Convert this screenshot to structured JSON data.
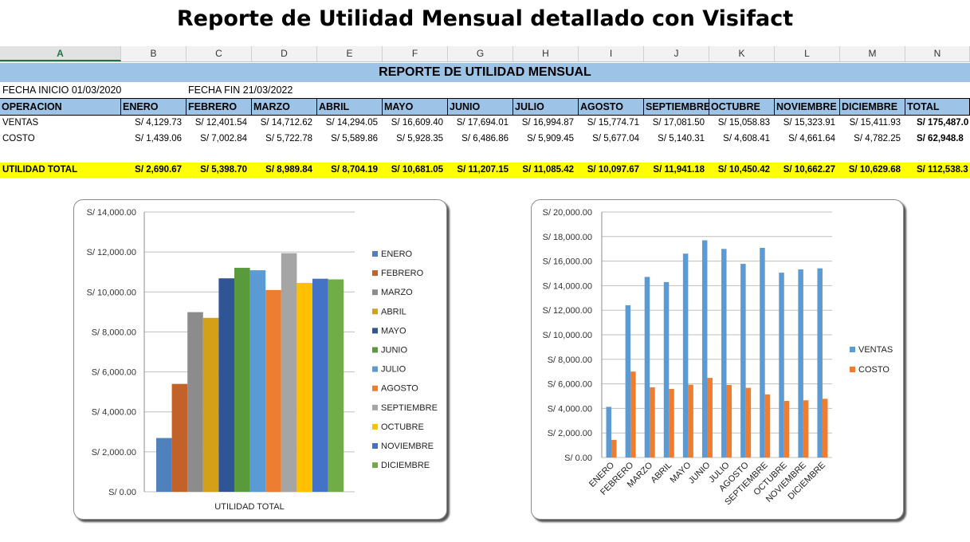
{
  "title": "Reporte de Utilidad Mensual detallado con Visifact",
  "columns": [
    "A",
    "B",
    "C",
    "D",
    "E",
    "F",
    "G",
    "H",
    "I",
    "J",
    "K",
    "L",
    "M",
    "N"
  ],
  "banner": "REPORTE DE UTILIDAD MENSUAL",
  "fecha_inicio": "FECHA INICIO  01/03/2020",
  "fecha_fin": "FECHA FIN  21/03/2022",
  "headers": [
    "OPERACION",
    "ENERO",
    "FEBRERO",
    "MARZO",
    "ABRIL",
    "MAYO",
    "JUNIO",
    "JULIO",
    "AGOSTO",
    "SEPTIEMBRE",
    "OCTUBRE",
    "NOVIEMBRE",
    "DICIEMBRE",
    "TOTAL"
  ],
  "rows": {
    "ventas": [
      "VENTAS",
      "S/ 4,129.73",
      "S/ 12,401.54",
      "S/ 14,712.62",
      "S/ 14,294.05",
      "S/ 16,609.40",
      "S/ 17,694.01",
      "S/ 16,994.87",
      "S/ 15,774.71",
      "S/ 17,081.50",
      "S/ 15,058.83",
      "S/ 15,323.91",
      "S/ 15,411.93",
      "S/ 175,487.0"
    ],
    "costo": [
      "COSTO",
      "S/ 1,439.06",
      "S/ 7,002.84",
      "S/ 5,722.78",
      "S/ 5,589.86",
      "S/ 5,928.35",
      "S/ 6,486.86",
      "S/ 5,909.45",
      "S/ 5,677.04",
      "S/ 5,140.31",
      "S/ 4,608.41",
      "S/ 4,661.64",
      "S/ 4,782.25",
      "S/ 62,948.8"
    ],
    "utilidad": [
      "UTILIDAD TOTAL",
      "S/ 2,690.67",
      "S/ 5,398.70",
      "S/ 8,989.84",
      "S/ 8,704.19",
      "S/ 10,681.05",
      "S/ 11,207.15",
      "S/ 11,085.42",
      "S/ 10,097.67",
      "S/ 11,941.18",
      "S/ 10,450.42",
      "S/ 10,662.27",
      "S/ 10,629.68",
      "S/ 112,538.3"
    ]
  },
  "chart_data": [
    {
      "type": "bar",
      "categories": [
        "UTILIDAD TOTAL"
      ],
      "xlabel": "UTILIDAD TOTAL",
      "ylim": [
        0,
        14000
      ],
      "yticks": [
        "S/ 0.00",
        "S/ 2,000.00",
        "S/ 4,000.00",
        "S/ 6,000.00",
        "S/ 8,000.00",
        "S/ 10,000.00",
        "S/ 12,000.00",
        "S/ 14,000.00"
      ],
      "legend_position": "right",
      "grid": true,
      "series": [
        {
          "name": "ENERO",
          "values": [
            2690.67
          ],
          "color": "#4f81bd"
        },
        {
          "name": "FEBRERO",
          "values": [
            5398.7
          ],
          "color": "#c0622a"
        },
        {
          "name": "MARZO",
          "values": [
            8989.84
          ],
          "color": "#8c8c8c"
        },
        {
          "name": "ABRIL",
          "values": [
            8704.19
          ],
          "color": "#d4a017"
        },
        {
          "name": "MAYO",
          "values": [
            10681.05
          ],
          "color": "#2f5597"
        },
        {
          "name": "JUNIO",
          "values": [
            11207.15
          ],
          "color": "#5b9a3c"
        },
        {
          "name": "JULIO",
          "values": [
            11085.42
          ],
          "color": "#5b9bd5"
        },
        {
          "name": "AGOSTO",
          "values": [
            10097.67
          ],
          "color": "#ed7d31"
        },
        {
          "name": "SEPTIEMBRE",
          "values": [
            11941.18
          ],
          "color": "#a5a5a5"
        },
        {
          "name": "OCTUBRE",
          "values": [
            10450.42
          ],
          "color": "#ffc000"
        },
        {
          "name": "NOVIEMBRE",
          "values": [
            10662.27
          ],
          "color": "#4472c4"
        },
        {
          "name": "DICIEMBRE",
          "values": [
            10629.68
          ],
          "color": "#70ad47"
        }
      ]
    },
    {
      "type": "bar",
      "categories": [
        "ENERO",
        "FEBRERO",
        "MARZO",
        "ABRIL",
        "MAYO",
        "JUNIO",
        "JULIO",
        "AGOSTO",
        "SEPTIEMBRE",
        "OCTUBRE",
        "NOVIEMBRE",
        "DICIEMBRE"
      ],
      "ylim": [
        0,
        20000
      ],
      "yticks": [
        "S/ 0.00",
        "S/ 2,000.00",
        "S/ 4,000.00",
        "S/ 6,000.00",
        "S/ 8,000.00",
        "S/ 10,000.00",
        "S/ 12,000.00",
        "S/ 14,000.00",
        "S/ 16,000.00",
        "S/ 18,000.00",
        "S/ 20,000.00"
      ],
      "legend_position": "right",
      "grid": true,
      "series": [
        {
          "name": "VENTAS",
          "values": [
            4129.73,
            12401.54,
            14712.62,
            14294.05,
            16609.4,
            17694.01,
            16994.87,
            15774.71,
            17081.5,
            15058.83,
            15323.91,
            15411.93
          ],
          "color": "#5b9bd5"
        },
        {
          "name": "COSTO",
          "values": [
            1439.06,
            7002.84,
            5722.78,
            5589.86,
            5928.35,
            6486.86,
            5909.45,
            5677.04,
            5140.31,
            4608.41,
            4661.64,
            4782.25
          ],
          "color": "#ed7d31"
        }
      ]
    }
  ]
}
